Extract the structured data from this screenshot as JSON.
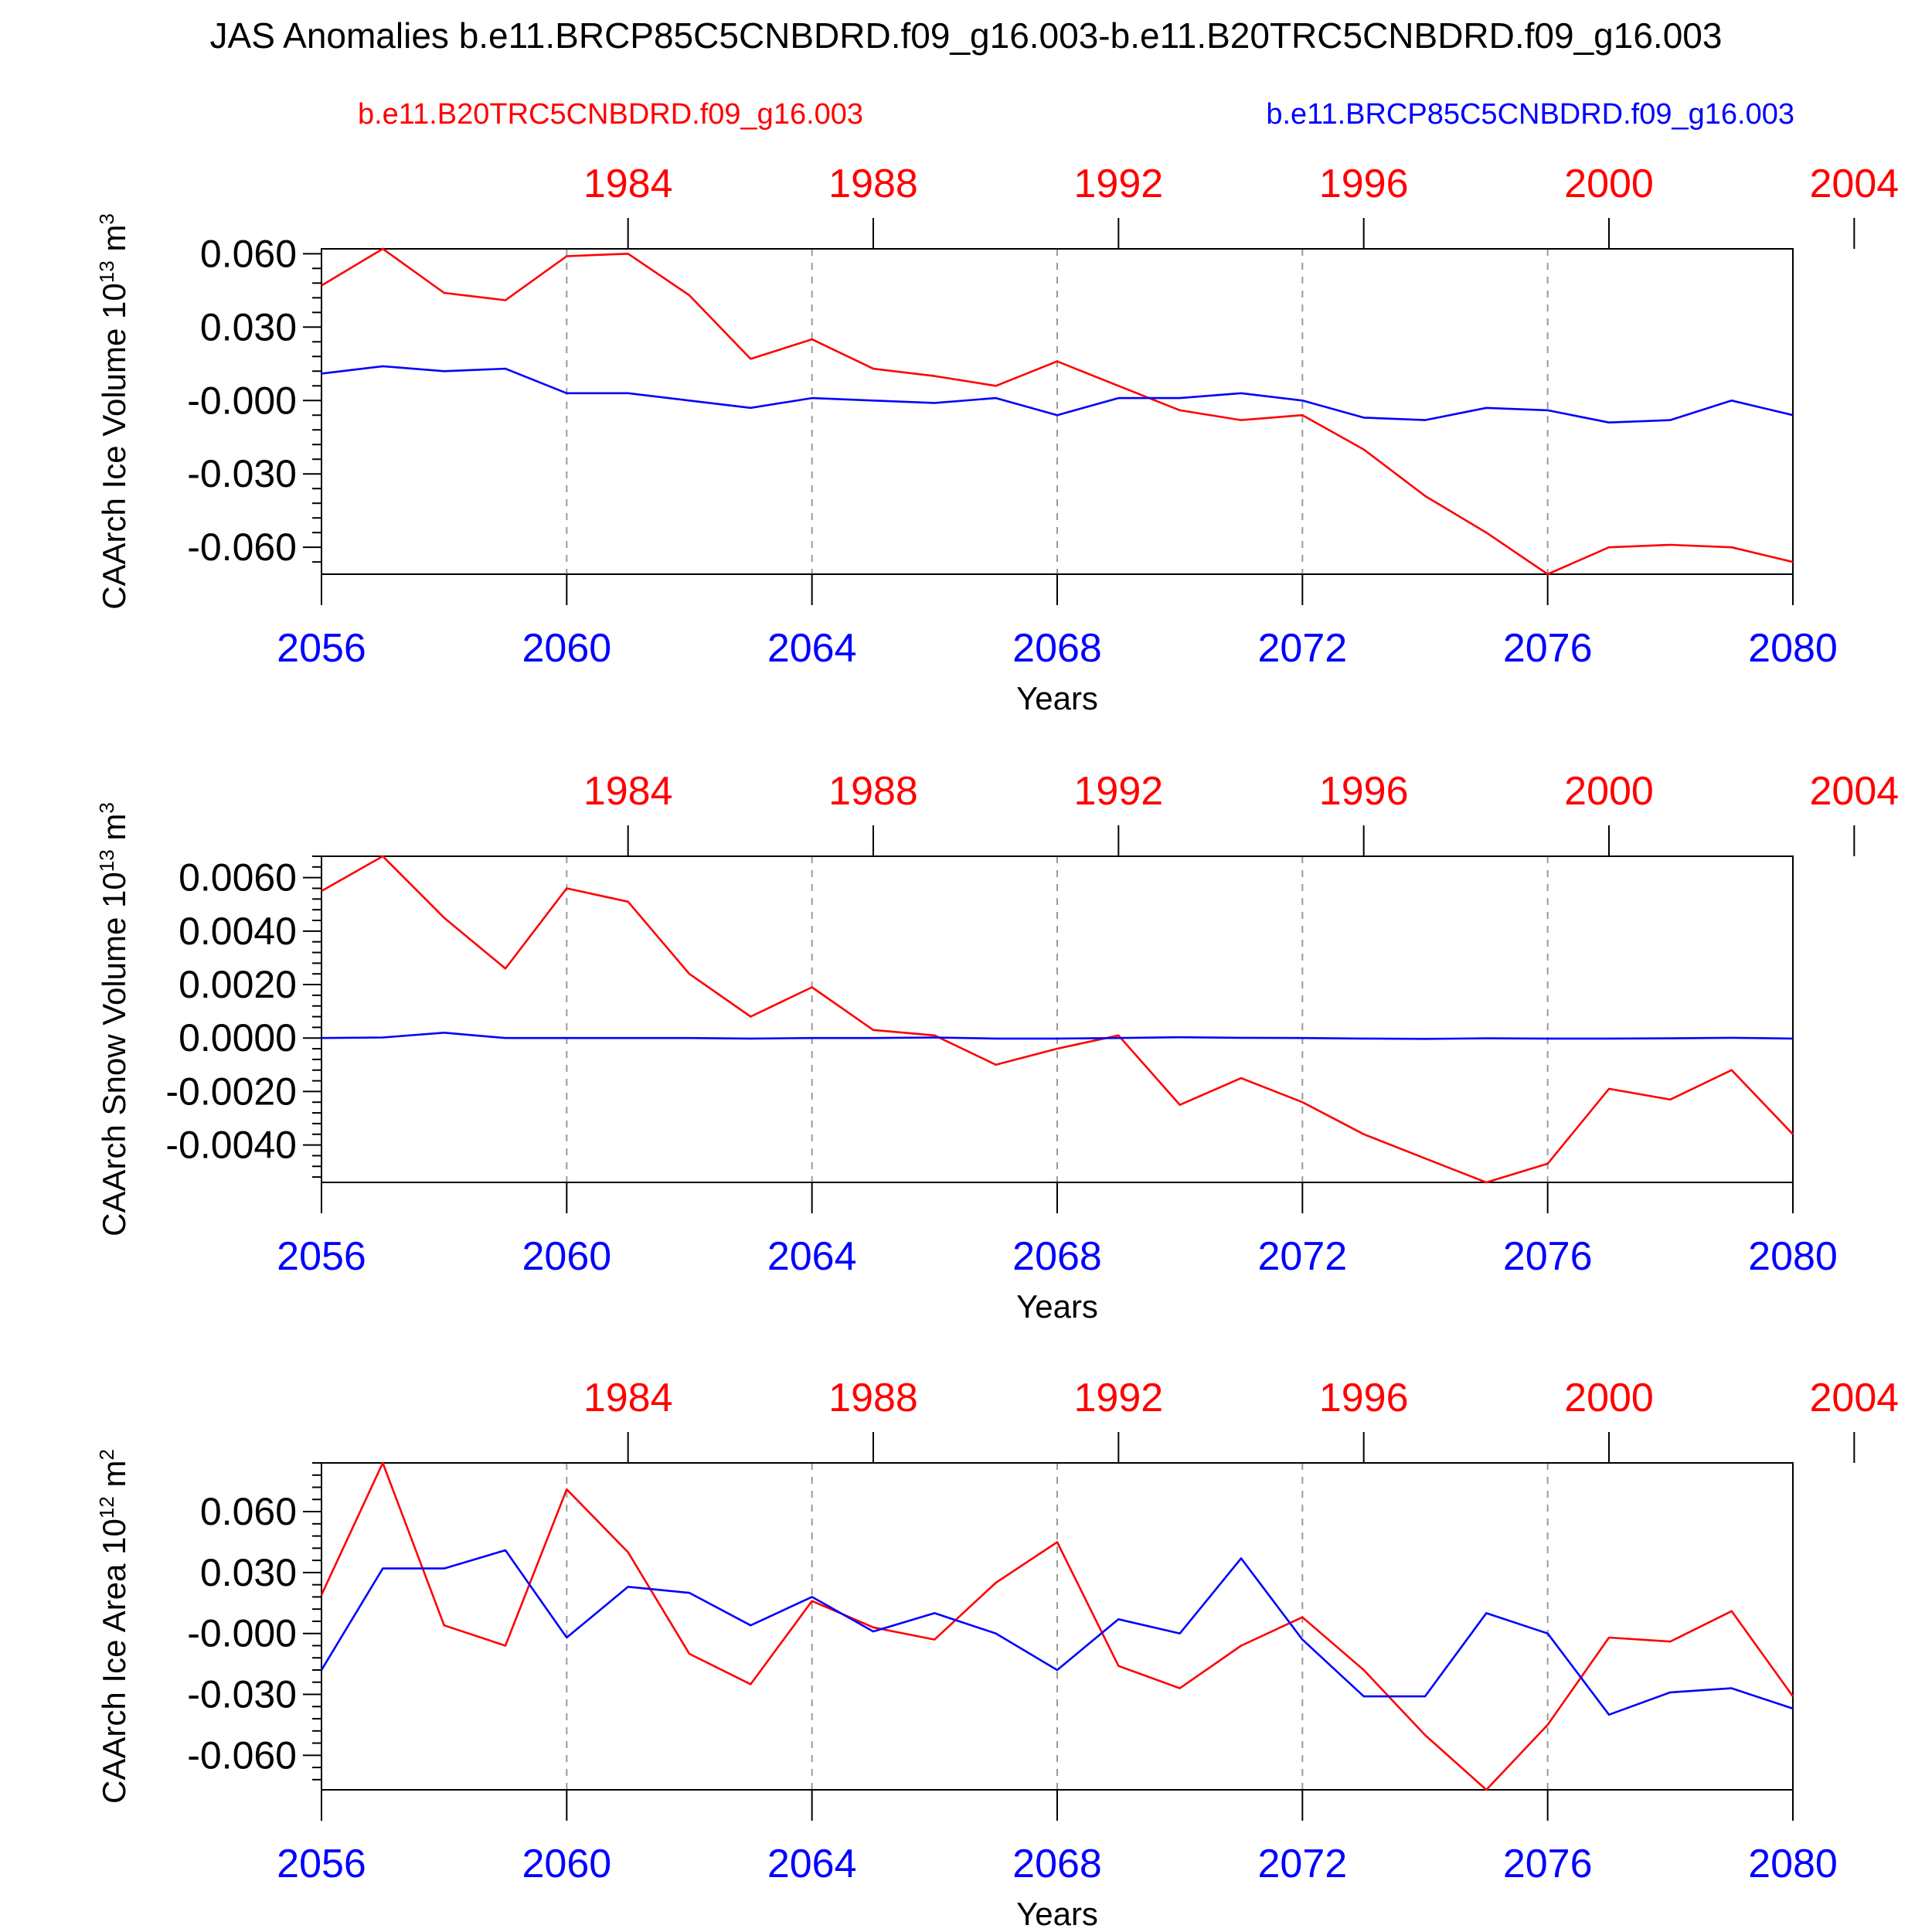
{
  "title": "JAS Anomalies b.e11.BRCP85C5CNBDRD.f09_g16.003-b.e11.B20TRC5CNBDRD.f09_g16.003",
  "legend": {
    "left": {
      "text": "b.e11.B20TRC5CNBDRD.f09_g16.003",
      "color": "#ff0000"
    },
    "right": {
      "text": "b.e11.BRCP85C5CNBDRD.f09_g16.003",
      "color": "#0000ff"
    }
  },
  "colors": {
    "historical": "#ff0000",
    "future": "#0000ff",
    "axis": "#000000",
    "grid": "#9a9a9a"
  },
  "chart_data": [
    {
      "type": "line",
      "ylabel": {
        "main": "CAArch Ice Volume 10",
        "sup": "13",
        "rest": " m",
        "sup2": "3"
      },
      "xlabel": "Years",
      "x_bottom": {
        "range": [
          2056,
          2080
        ],
        "ticks": [
          2056,
          2060,
          2064,
          2068,
          2072,
          2076,
          2080
        ]
      },
      "x_top": {
        "offset": -77,
        "ticks": [
          1984,
          1988,
          1992,
          1996,
          2000,
          2004
        ]
      },
      "ylim": [
        -0.071,
        0.062
      ],
      "yticks": [
        0.06,
        0.03,
        0,
        -0.03,
        -0.06
      ],
      "ytick_labels": [
        "0.060",
        "0.030",
        "-0.000",
        "-0.030",
        "-0.060"
      ],
      "grid_x": [
        2060,
        2064,
        2068,
        2072,
        2076
      ],
      "x": [
        2056,
        2057,
        2058,
        2059,
        2060,
        2061,
        2062,
        2063,
        2064,
        2065,
        2066,
        2067,
        2068,
        2069,
        2070,
        2071,
        2072,
        2073,
        2074,
        2075,
        2076,
        2077,
        2078,
        2079,
        2080
      ],
      "series": [
        {
          "name": "b.e11.B20TRC5CNBDRD.f09_g16.003",
          "color": "#ff0000",
          "values": [
            0.047,
            0.062,
            0.044,
            0.041,
            0.059,
            0.06,
            0.043,
            0.017,
            0.025,
            0.013,
            0.01,
            0.006,
            0.016,
            0.006,
            -0.004,
            -0.008,
            -0.006,
            -0.02,
            -0.039,
            -0.054,
            -0.071,
            -0.06,
            -0.059,
            -0.06,
            -0.066
          ]
        },
        {
          "name": "b.e11.BRCP85C5CNBDRD.f09_g16.003",
          "color": "#0000ff",
          "values": [
            0.011,
            0.014,
            0.012,
            0.013,
            0.003,
            0.003,
            0.0,
            -0.003,
            0.001,
            0.0,
            -0.001,
            0.001,
            -0.006,
            0.001,
            0.001,
            0.003,
            0.0,
            -0.007,
            -0.008,
            -0.003,
            -0.004,
            -0.009,
            -0.008,
            0.0,
            -0.006
          ]
        }
      ]
    },
    {
      "type": "line",
      "ylabel": {
        "main": "CAArch Snow Volume 10",
        "sup": "13",
        "rest": " m",
        "sup2": "3"
      },
      "xlabel": "Years",
      "x_bottom": {
        "range": [
          2056,
          2080
        ],
        "ticks": [
          2056,
          2060,
          2064,
          2068,
          2072,
          2076,
          2080
        ]
      },
      "x_top": {
        "offset": -77,
        "ticks": [
          1984,
          1988,
          1992,
          1996,
          2000,
          2004
        ]
      },
      "ylim": [
        -0.0054,
        0.0068
      ],
      "yticks": [
        0.006,
        0.004,
        0.002,
        0,
        -0.002,
        -0.004
      ],
      "ytick_labels": [
        "0.0060",
        "0.0040",
        "0.0020",
        "0.0000",
        "-0.0020",
        "-0.0040"
      ],
      "grid_x": [
        2060,
        2064,
        2068,
        2072,
        2076
      ],
      "x": [
        2056,
        2057,
        2058,
        2059,
        2060,
        2061,
        2062,
        2063,
        2064,
        2065,
        2066,
        2067,
        2068,
        2069,
        2070,
        2071,
        2072,
        2073,
        2074,
        2075,
        2076,
        2077,
        2078,
        2079,
        2080
      ],
      "series": [
        {
          "name": "b.e11.B20TRC5CNBDRD.f09_g16.003",
          "color": "#ff0000",
          "values": [
            0.0055,
            0.0068,
            0.0045,
            0.0026,
            0.0056,
            0.0051,
            0.0024,
            0.0008,
            0.0019,
            0.0003,
            0.0001,
            -0.001,
            -0.0004,
            0.0001,
            -0.0025,
            -0.0015,
            -0.0024,
            -0.0036,
            -0.0045,
            -0.0054,
            -0.0047,
            -0.0019,
            -0.0023,
            -0.0012,
            -0.0036
          ]
        },
        {
          "name": "b.e11.BRCP85C5CNBDRD.f09_g16.003",
          "color": "#0000ff",
          "values": [
            0.0,
            2e-05,
            0.0002,
            0.0,
            0.0,
            0.0,
            0.0,
            -2e-05,
            0.0,
            0.0,
            2e-05,
            -2e-05,
            -2e-05,
            0.0,
            3e-05,
            1e-05,
            0.0,
            -2e-05,
            -3e-05,
            -1e-05,
            -2e-05,
            -2e-05,
            -1e-05,
            1e-05,
            -2e-05
          ]
        }
      ]
    },
    {
      "type": "line",
      "ylabel": {
        "main": "CAArch Ice Area 10",
        "sup": "12",
        "rest": " m",
        "sup2": "2"
      },
      "xlabel": "Years",
      "x_bottom": {
        "range": [
          2056,
          2080
        ],
        "ticks": [
          2056,
          2060,
          2064,
          2068,
          2072,
          2076,
          2080
        ]
      },
      "x_top": {
        "offset": -77,
        "ticks": [
          1984,
          1988,
          1992,
          1996,
          2000,
          2004
        ]
      },
      "ylim": [
        -0.077,
        0.084
      ],
      "yticks": [
        0.06,
        0.03,
        0,
        -0.03,
        -0.06
      ],
      "ytick_labels": [
        "0.060",
        "0.030",
        "-0.000",
        "-0.030",
        "-0.060"
      ],
      "grid_x": [
        2060,
        2064,
        2068,
        2072,
        2076
      ],
      "x": [
        2056,
        2057,
        2058,
        2059,
        2060,
        2061,
        2062,
        2063,
        2064,
        2065,
        2066,
        2067,
        2068,
        2069,
        2070,
        2071,
        2072,
        2073,
        2074,
        2075,
        2076,
        2077,
        2078,
        2079,
        2080
      ],
      "series": [
        {
          "name": "b.e11.B20TRC5CNBDRD.f09_g16.003",
          "color": "#ff0000",
          "values": [
            0.019,
            0.084,
            0.004,
            -0.006,
            0.071,
            0.04,
            -0.01,
            -0.025,
            0.016,
            0.003,
            -0.003,
            0.025,
            0.045,
            -0.016,
            -0.027,
            -0.006,
            0.008,
            -0.018,
            -0.05,
            -0.077,
            -0.045,
            -0.002,
            -0.004,
            0.011,
            -0.031
          ]
        },
        {
          "name": "b.e11.BRCP85C5CNBDRD.f09_g16.003",
          "color": "#0000ff",
          "values": [
            -0.018,
            0.032,
            0.032,
            0.041,
            -0.002,
            0.023,
            0.02,
            0.004,
            0.018,
            0.001,
            0.01,
            0.0,
            -0.018,
            0.007,
            0.0,
            0.037,
            -0.003,
            -0.031,
            -0.031,
            0.01,
            0.0,
            -0.04,
            -0.029,
            -0.027,
            -0.037
          ]
        }
      ]
    }
  ]
}
